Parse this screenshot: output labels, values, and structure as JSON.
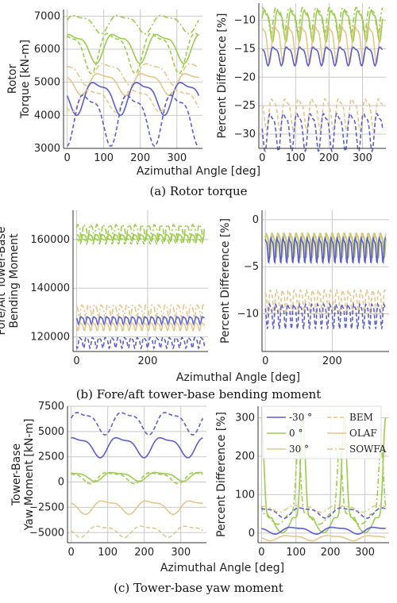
{
  "colors": {
    "minus30": "#5a5fcf",
    "zero": "#9acd4a",
    "plus30": "#e6c58a",
    "grid": "#c8c8c8",
    "axis": "#333333"
  },
  "legend": {
    "entries": [
      {
        "label": "-30 °",
        "color": "#5a5fcf",
        "dash": "solid"
      },
      {
        "label": "BEM",
        "color": "#e6c58a",
        "dash": "dashed"
      },
      {
        "label": "0 °",
        "color": "#9acd4a",
        "dash": "solid"
      },
      {
        "label": "OLAF",
        "color": "#e6c58a",
        "dash": "solid"
      },
      {
        "label": "30 °",
        "color": "#e6c58a",
        "dash": "solid"
      },
      {
        "label": "SOWFA",
        "color": "#e6c58a",
        "dash": "dashdot"
      }
    ]
  },
  "rows": [
    {
      "caption": "(a) Rotor torque",
      "xlabel": "Azimuthal Angle [deg]"
    },
    {
      "caption": "(b) Fore/aft tower-base bending moment",
      "xlabel": "Azimuthal Angle [deg]"
    },
    {
      "caption": "(c) Tower-base yaw moment",
      "xlabel": "Azimuthal Angle [deg]"
    }
  ],
  "chart_data": [
    {
      "type": "line",
      "ylabel": "Rotor\nTorque [kN-m]",
      "xlim": [
        -10,
        370
      ],
      "ylim": [
        3000,
        7200
      ],
      "xticks": [
        "0",
        "100",
        "200",
        "300"
      ],
      "yticks": [
        "3000",
        "4000",
        "5000",
        "6000",
        "7000"
      ],
      "series": [
        {
          "group": "zero",
          "style": "dashdot",
          "mean": 6800,
          "amp": 250,
          "periods": 3
        },
        {
          "group": "zero",
          "style": "solid",
          "mean": 6100,
          "amp": 400,
          "periods": 3
        },
        {
          "group": "zero",
          "style": "dashed",
          "mean": 6000,
          "amp": 550,
          "periods": 3
        },
        {
          "group": "plus30",
          "style": "dashdot",
          "mean": 5300,
          "amp": 300,
          "periods": 3
        },
        {
          "group": "plus30",
          "style": "solid",
          "mean": 5000,
          "amp": 300,
          "periods": 3
        },
        {
          "group": "minus30",
          "style": "solid",
          "mean": 4600,
          "amp": 450,
          "periods": 3
        },
        {
          "group": "plus30",
          "style": "dashed",
          "mean": 4500,
          "amp": 300,
          "periods": 3
        },
        {
          "group": "minus30",
          "style": "dashed",
          "mean": 4000,
          "amp": 700,
          "periods": 3
        }
      ]
    },
    {
      "type": "line",
      "ylabel": "Percent Difference [%]",
      "xlim": [
        -10,
        370
      ],
      "ylim": [
        -32.5,
        -7
      ],
      "xticks": [
        "0",
        "100",
        "200",
        "300"
      ],
      "yticks": [
        "-10",
        "-15",
        "-20",
        "-25",
        "-30"
      ],
      "series": [
        {
          "group": "zero",
          "style": "solid",
          "mean": -10.5,
          "amp": 2.5,
          "periods": 9
        },
        {
          "group": "zero",
          "style": "dashdot",
          "mean": -9.5,
          "amp": 2.0,
          "periods": 9
        },
        {
          "group": "plus30",
          "style": "solid",
          "mean": -13.5,
          "amp": 3.0,
          "periods": 9
        },
        {
          "group": "minus30",
          "style": "solid",
          "mean": -16,
          "amp": 1.5,
          "periods": 9
        },
        {
          "group": "plus30",
          "style": "dashed",
          "mean": -26,
          "amp": 2.5,
          "periods": 9
        },
        {
          "group": "minus30",
          "style": "dashed",
          "mean": -29,
          "amp": 3.0,
          "periods": 9
        }
      ]
    },
    {
      "type": "line",
      "ylabel": "Fore/Aft Tower-Base\nBending Moment",
      "xlim": [
        -10,
        370
      ],
      "ylim": [
        114000,
        172000
      ],
      "xticks": [
        "0",
        "200"
      ],
      "yticks": [
        "120000",
        "140000",
        "160000"
      ],
      "series": [
        {
          "group": "zero",
          "style": "dashdot",
          "mean": 164000,
          "amp": 2500,
          "periods": 20
        },
        {
          "group": "zero",
          "style": "solid",
          "mean": 161000,
          "amp": 1200,
          "periods": 20
        },
        {
          "group": "zero",
          "style": "dashed",
          "mean": 159500,
          "amp": 1000,
          "periods": 20
        },
        {
          "group": "plus30",
          "style": "dashdot",
          "mean": 131000,
          "amp": 2500,
          "periods": 20
        },
        {
          "group": "minus30",
          "style": "solid",
          "mean": 127000,
          "amp": 1500,
          "periods": 20
        },
        {
          "group": "plus30",
          "style": "solid",
          "mean": 124500,
          "amp": 1500,
          "periods": 20
        },
        {
          "group": "minus30",
          "style": "dashed",
          "mean": 118000,
          "amp": 2000,
          "periods": 20
        }
      ]
    },
    {
      "type": "line",
      "ylabel": "Percent Difference [%]",
      "xlim": [
        -10,
        370
      ],
      "ylim": [
        -14,
        1
      ],
      "xticks": [
        "0",
        "200"
      ],
      "yticks": [
        "0",
        "-5",
        "-10"
      ],
      "series": [
        {
          "group": "zero",
          "style": "solid",
          "mean": -2.5,
          "amp": 1.2,
          "periods": 20
        },
        {
          "group": "plus30",
          "style": "solid",
          "mean": -2.5,
          "amp": 1.2,
          "periods": 20
        },
        {
          "group": "minus30",
          "style": "solid",
          "mean": -3.0,
          "amp": 1.2,
          "periods": 20
        },
        {
          "group": "plus30",
          "style": "dashed",
          "mean": -8.5,
          "amp": 1.2,
          "periods": 20
        },
        {
          "group": "minus30",
          "style": "dashed",
          "mean": -10,
          "amp": 1.2,
          "periods": 20
        }
      ]
    },
    {
      "type": "line",
      "ylabel": "Tower-Base\nYaw Moment [kN-m]",
      "xlim": [
        -10,
        370
      ],
      "ylim": [
        -6000,
        7500
      ],
      "xticks": [
        "0",
        "100",
        "200",
        "300"
      ],
      "yticks": [
        "7500",
        "5000",
        "2500",
        "0",
        "-2500",
        "-5000"
      ],
      "series": [
        {
          "group": "minus30",
          "style": "dashed",
          "mean": 6000,
          "amp": 1000,
          "periods": 3
        },
        {
          "group": "minus30",
          "style": "solid",
          "mean": 3600,
          "amp": 900,
          "periods": 3
        },
        {
          "group": "zero",
          "style": "solid",
          "mean": 600,
          "amp": 400,
          "periods": 3
        },
        {
          "group": "zero",
          "style": "dashed",
          "mean": 500,
          "amp": 500,
          "periods": 3
        },
        {
          "group": "plus30",
          "style": "solid",
          "mean": -2400,
          "amp": 600,
          "periods": 3
        },
        {
          "group": "plus30",
          "style": "dashed",
          "mean": -4800,
          "amp": 500,
          "periods": 3
        }
      ]
    },
    {
      "type": "line",
      "ylabel": "Percent Difference [%]",
      "xlim": [
        -10,
        370
      ],
      "ylim": [
        -25,
        330
      ],
      "xticks": [
        "0",
        "100",
        "200",
        "300"
      ],
      "yticks": [
        "0",
        "100",
        "200",
        "300"
      ],
      "series": [
        {
          "group": "zero",
          "style": "solid",
          "spike": true,
          "mean": 40,
          "amp": 260,
          "periods": 3
        },
        {
          "group": "zero",
          "style": "dashdot",
          "spike": true,
          "mean": 50,
          "amp": 180,
          "periods": 3
        },
        {
          "group": "minus30",
          "style": "dashed",
          "mean": 55,
          "amp": 12,
          "periods": 3
        },
        {
          "group": "plus30",
          "style": "dashdot",
          "mean": 65,
          "amp": 8,
          "periods": 3
        },
        {
          "group": "minus30",
          "style": "solid",
          "mean": 8,
          "amp": 8,
          "periods": 3
        },
        {
          "group": "plus30",
          "style": "solid",
          "mean": -12,
          "amp": 6,
          "periods": 3
        }
      ]
    }
  ]
}
